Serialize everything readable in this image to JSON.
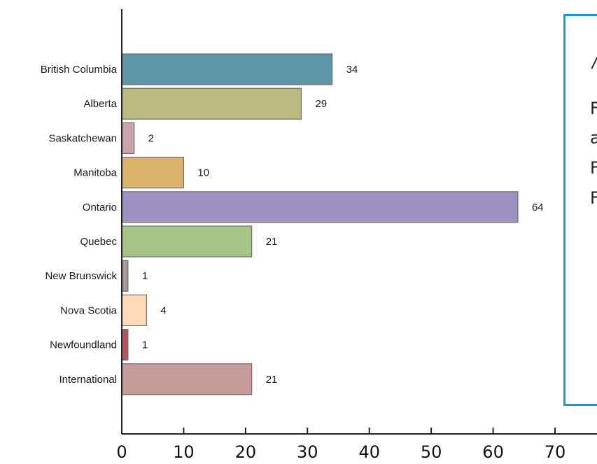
{
  "chart_data": {
    "type": "bar",
    "orientation": "horizontal",
    "categories": [
      "British Columbia",
      "Alberta",
      "Saskatchewan",
      "Manitoba",
      "Ontario",
      "Quebec",
      "New Brunswick",
      "Nova Scotia",
      "Newfoundland",
      "International"
    ],
    "values": [
      34,
      29,
      2,
      10,
      64,
      21,
      1,
      4,
      1,
      21
    ],
    "colors": [
      "#5b95a8",
      "#bcb97e",
      "#c8a3a8",
      "#dcb16a",
      "#9e92c3",
      "#a6c486",
      "#a69a96",
      "#fdd9b8",
      "#c0525e",
      "#c79b9b"
    ],
    "xlim": [
      0,
      70
    ],
    "xticks": [
      0,
      10,
      20,
      30,
      40,
      50,
      60,
      70
    ],
    "title": "",
    "xlabel": "",
    "ylabel": "",
    "grid": false
  },
  "side_panel": {
    "fragments": [
      "/",
      "F",
      "a",
      "F",
      "F"
    ],
    "border_color": "#1a9ad6"
  }
}
